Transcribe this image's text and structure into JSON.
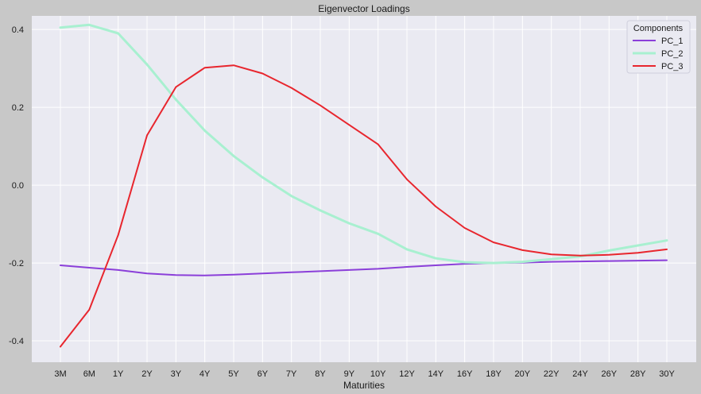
{
  "chart_data": {
    "type": "line",
    "title": "Eigenvector Loadings",
    "xlabel": "Maturities",
    "ylabel": "",
    "categories": [
      "3M",
      "6M",
      "1Y",
      "2Y",
      "3Y",
      "4Y",
      "5Y",
      "6Y",
      "7Y",
      "8Y",
      "9Y",
      "10Y",
      "12Y",
      "14Y",
      "16Y",
      "18Y",
      "20Y",
      "22Y",
      "24Y",
      "26Y",
      "28Y",
      "30Y"
    ],
    "ylim": [
      -0.455,
      0.435
    ],
    "yticks": [
      -0.4,
      -0.2,
      0.0,
      0.2,
      0.4
    ],
    "ytick_labels": [
      "-0.4",
      "-0.2",
      "0.0",
      "0.2",
      "0.4"
    ],
    "grid": true,
    "legend": {
      "title": "Components",
      "placement": "top-right"
    },
    "series": [
      {
        "name": "PC_1",
        "color": "#8b3fd9",
        "values": [
          -0.206,
          -0.212,
          -0.218,
          -0.227,
          -0.231,
          -0.232,
          -0.23,
          -0.227,
          -0.224,
          -0.221,
          -0.218,
          -0.215,
          -0.21,
          -0.206,
          -0.202,
          -0.2,
          -0.199,
          -0.197,
          -0.196,
          -0.195,
          -0.194,
          -0.193
        ]
      },
      {
        "name": "PC_2",
        "color": "#a8f0d0",
        "values": [
          0.405,
          0.412,
          0.39,
          0.31,
          0.22,
          0.14,
          0.075,
          0.02,
          -0.028,
          -0.065,
          -0.098,
          -0.125,
          -0.165,
          -0.188,
          -0.198,
          -0.2,
          -0.197,
          -0.19,
          -0.183,
          -0.168,
          -0.155,
          -0.142
        ]
      },
      {
        "name": "PC_3",
        "color": "#e8262e",
        "values": [
          -0.415,
          -0.32,
          -0.128,
          0.128,
          0.252,
          0.302,
          0.308,
          0.287,
          0.25,
          0.205,
          0.155,
          0.105,
          0.015,
          -0.055,
          -0.11,
          -0.147,
          -0.167,
          -0.178,
          -0.181,
          -0.179,
          -0.174,
          -0.165
        ]
      }
    ]
  }
}
